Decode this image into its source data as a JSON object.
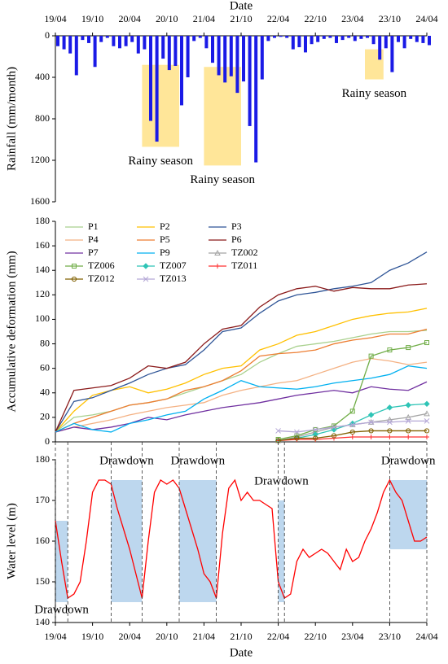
{
  "chart_data": [
    {
      "type": "bar",
      "x_label": "Date",
      "y_label": "Rainfall  (mm/month)",
      "x": [
        "19/04",
        "19/05",
        "19/06",
        "19/07",
        "19/08",
        "19/09",
        "19/10",
        "19/11",
        "19/12",
        "20/01",
        "20/02",
        "20/03",
        "20/04",
        "20/05",
        "20/06",
        "20/07",
        "20/08",
        "20/09",
        "20/10",
        "20/11",
        "20/12",
        "21/01",
        "21/02",
        "21/03",
        "21/04",
        "21/05",
        "21/06",
        "21/07",
        "21/08",
        "21/09",
        "21/10",
        "21/11",
        "21/12",
        "22/01",
        "22/02",
        "22/03",
        "22/04",
        "22/05",
        "22/06",
        "22/07",
        "22/08",
        "22/09",
        "22/10",
        "22/11",
        "22/12",
        "23/01",
        "23/02",
        "23/03",
        "23/04",
        "23/05",
        "23/06",
        "23/07",
        "23/08",
        "23/09",
        "23/10",
        "23/11",
        "23/12",
        "24/01",
        "24/02",
        "24/03",
        "24/04"
      ],
      "values": [
        100,
        130,
        170,
        380,
        40,
        70,
        300,
        60,
        20,
        100,
        120,
        100,
        60,
        170,
        130,
        820,
        1020,
        220,
        330,
        290,
        670,
        400,
        50,
        20,
        120,
        260,
        380,
        450,
        390,
        550,
        440,
        870,
        1220,
        420,
        50,
        20,
        10,
        20,
        130,
        110,
        160,
        80,
        60,
        30,
        20,
        70,
        40,
        20,
        50,
        30,
        20,
        80,
        230,
        120,
        350,
        60,
        120,
        30,
        60,
        70,
        90
      ],
      "color": "#1a1ae6",
      "ylim": [
        0,
        1600
      ],
      "yticks": [
        0,
        400,
        800,
        1200,
        1600
      ],
      "y_inverted": true,
      "xlim": [
        "19/04",
        "24/04"
      ],
      "xticks": [
        "19/04",
        "19/10",
        "20/04",
        "20/10",
        "21/04",
        "21/10",
        "22/04",
        "22/10",
        "23/04",
        "23/10",
        "24/04"
      ],
      "x_axis_position": "top",
      "spans": [
        {
          "label": "Rainy season",
          "x0": "20/06",
          "x1": "20/12",
          "y0": 280,
          "y1": 1070,
          "color": "#ffe699",
          "label_at": "bottom"
        },
        {
          "label": "Rainy season",
          "x0": "21/04",
          "x1": "21/10",
          "y0": 300,
          "y1": 1250,
          "color": "#ffe699",
          "label_at": "bottom"
        },
        {
          "label": "Rainy season",
          "x0": "23/06",
          "x1": "23/09",
          "y0": 130,
          "y1": 420,
          "color": "#ffe699",
          "label_at": "bottom"
        }
      ]
    },
    {
      "type": "line",
      "y_label": "Accumulative deformation (mm)",
      "x": [
        "19/04",
        "19/07",
        "19/10",
        "20/01",
        "20/04",
        "20/07",
        "20/10",
        "21/01",
        "21/04",
        "21/07",
        "21/10",
        "22/01",
        "22/04",
        "22/07",
        "22/10",
        "23/01",
        "23/04",
        "23/07",
        "23/10",
        "24/01",
        "24/04"
      ],
      "xlim": [
        "19/04",
        "24/04"
      ],
      "ylim": [
        0,
        180
      ],
      "yticks": [
        0,
        20,
        40,
        60,
        80,
        100,
        120,
        140,
        160,
        180
      ],
      "legend": "upper left",
      "series": [
        {
          "name": "P1",
          "color": "#a9d18e",
          "values": [
            8,
            20,
            22,
            25,
            30,
            32,
            35,
            40,
            45,
            50,
            55,
            65,
            72,
            78,
            80,
            82,
            85,
            88,
            90,
            90,
            91
          ]
        },
        {
          "name": "P2",
          "color": "#ffc000",
          "values": [
            8,
            25,
            38,
            42,
            45,
            40,
            43,
            48,
            55,
            60,
            62,
            75,
            80,
            87,
            90,
            95,
            100,
            103,
            105,
            106,
            109
          ]
        },
        {
          "name": "P3",
          "color": "#2f5597",
          "values": [
            8,
            33,
            36,
            42,
            48,
            55,
            60,
            63,
            75,
            90,
            93,
            105,
            115,
            120,
            122,
            125,
            127,
            130,
            140,
            146,
            155
          ]
        },
        {
          "name": "P4",
          "color": "#f4b183",
          "values": [
            8,
            12,
            15,
            18,
            22,
            25,
            28,
            30,
            32,
            38,
            42,
            45,
            48,
            50,
            55,
            60,
            65,
            68,
            66,
            63,
            65
          ]
        },
        {
          "name": "P5",
          "color": "#ed7d31",
          "values": [
            8,
            15,
            20,
            25,
            30,
            32,
            35,
            42,
            45,
            50,
            58,
            70,
            72,
            73,
            75,
            80,
            83,
            85,
            88,
            88,
            92
          ]
        },
        {
          "name": "P6",
          "color": "#8b1a1a",
          "values": [
            8,
            42,
            44,
            46,
            52,
            62,
            60,
            65,
            80,
            92,
            95,
            110,
            120,
            125,
            127,
            123,
            126,
            125,
            125,
            128,
            129
          ]
        },
        {
          "name": "P7",
          "color": "#7030a0",
          "values": [
            8,
            12,
            10,
            12,
            15,
            20,
            18,
            22,
            25,
            28,
            30,
            32,
            35,
            38,
            40,
            42,
            40,
            45,
            43,
            42,
            49
          ]
        },
        {
          "name": "P9",
          "color": "#00b0f0",
          "values": [
            8,
            15,
            10,
            8,
            15,
            18,
            22,
            25,
            35,
            42,
            50,
            45,
            44,
            43,
            45,
            48,
            50,
            52,
            55,
            62,
            60
          ]
        },
        {
          "name": "TZ002",
          "color": "#a5a5a5",
          "marker": "triangle",
          "values": [
            null,
            null,
            null,
            null,
            null,
            null,
            null,
            null,
            null,
            null,
            null,
            null,
            1,
            4,
            8,
            12,
            14,
            16,
            18,
            20,
            23
          ]
        },
        {
          "name": "TZ006",
          "color": "#70ad47",
          "marker": "square",
          "values": [
            null,
            null,
            null,
            null,
            null,
            null,
            null,
            null,
            null,
            null,
            null,
            null,
            2,
            5,
            10,
            13,
            25,
            70,
            75,
            77,
            81
          ]
        },
        {
          "name": "TZ007",
          "color": "#2ec4b6",
          "marker": "diamond",
          "values": [
            null,
            null,
            null,
            null,
            null,
            null,
            null,
            null,
            null,
            null,
            null,
            null,
            1,
            3,
            6,
            10,
            15,
            22,
            28,
            30,
            31
          ]
        },
        {
          "name": "TZ011",
          "color": "#ff3030",
          "marker": "plus",
          "values": [
            null,
            null,
            null,
            null,
            null,
            null,
            null,
            null,
            null,
            null,
            null,
            null,
            1,
            2,
            2,
            3,
            4,
            4,
            4,
            4,
            4
          ]
        },
        {
          "name": "TZ012",
          "color": "#806000",
          "marker": "circle",
          "values": [
            null,
            null,
            null,
            null,
            null,
            null,
            null,
            null,
            null,
            null,
            null,
            null,
            1,
            3,
            3,
            5,
            8,
            9,
            9,
            9,
            9
          ]
        },
        {
          "name": "TZ013",
          "color": "#b4a7d6",
          "marker": "x",
          "values": [
            null,
            null,
            null,
            null,
            null,
            null,
            null,
            null,
            null,
            null,
            null,
            null,
            9,
            8,
            10,
            12,
            14,
            16,
            16,
            17,
            17
          ]
        }
      ]
    },
    {
      "type": "line",
      "x_label": "Date",
      "y_label": "Water level (m)",
      "x": [
        "19/04",
        "19/05",
        "19/06",
        "19/07",
        "19/08",
        "19/09",
        "19/10",
        "19/11",
        "19/12",
        "20/01",
        "20/02",
        "20/03",
        "20/04",
        "20/05",
        "20/06",
        "20/07",
        "20/08",
        "20/09",
        "20/10",
        "20/11",
        "20/12",
        "21/01",
        "21/02",
        "21/03",
        "21/04",
        "21/05",
        "21/06",
        "21/07",
        "21/08",
        "21/09",
        "21/10",
        "21/11",
        "21/12",
        "22/01",
        "22/02",
        "22/03",
        "22/04",
        "22/05",
        "22/06",
        "22/07",
        "22/08",
        "22/09",
        "22/10",
        "22/11",
        "22/12",
        "23/01",
        "23/02",
        "23/03",
        "23/04",
        "23/05",
        "23/06",
        "23/07",
        "23/08",
        "23/09",
        "23/10",
        "23/11",
        "23/12",
        "24/01",
        "24/02",
        "24/03",
        "24/04"
      ],
      "values": [
        165,
        155,
        146,
        147,
        150,
        160,
        172,
        175,
        175,
        174,
        168,
        163,
        158,
        152,
        146,
        160,
        172,
        175,
        174,
        175,
        173,
        168,
        163,
        158,
        152,
        150,
        146,
        162,
        173,
        175,
        170,
        172,
        170,
        170,
        169,
        168,
        150,
        146,
        147,
        155,
        158,
        156,
        157,
        158,
        157,
        155,
        153,
        158,
        155,
        156,
        160,
        163,
        167,
        172,
        175,
        172,
        170,
        165,
        160,
        160,
        161
      ],
      "color": "#ff0000",
      "xlim": [
        "19/04",
        "24/04"
      ],
      "ylim": [
        140,
        180
      ],
      "yticks": [
        140,
        150,
        160,
        170,
        180
      ],
      "xticks": [
        "19/04",
        "19/10",
        "20/04",
        "20/10",
        "21/04",
        "21/10",
        "22/04",
        "22/10",
        "23/04",
        "23/10",
        "24/04"
      ],
      "x_axis_position": "bottom",
      "spans": [
        {
          "label": "Drawdown",
          "x0": "19/04",
          "x1": "19/06",
          "y0": 145,
          "y1": 165,
          "color": "#bdd7ee",
          "label_at": "bottom"
        },
        {
          "label": "Drawdown",
          "x0": "20/01",
          "x1": "20/06",
          "y0": 145,
          "y1": 175,
          "color": "#bdd7ee",
          "label_at": "top"
        },
        {
          "label": "Drawdown",
          "x0": "20/12",
          "x1": "21/06",
          "y0": 145,
          "y1": 175,
          "color": "#bdd7ee",
          "label_at": "top"
        },
        {
          "label": "Drawdown",
          "x0": "22/04",
          "x1": "22/05",
          "y0": 145,
          "y1": 170,
          "color": "#bdd7ee",
          "label_at": "top"
        },
        {
          "label": "Drawdown",
          "x0": "23/10",
          "x1": "24/04",
          "y0": 158,
          "y1": 175,
          "color": "#bdd7ee",
          "label_at": "top"
        }
      ]
    }
  ]
}
